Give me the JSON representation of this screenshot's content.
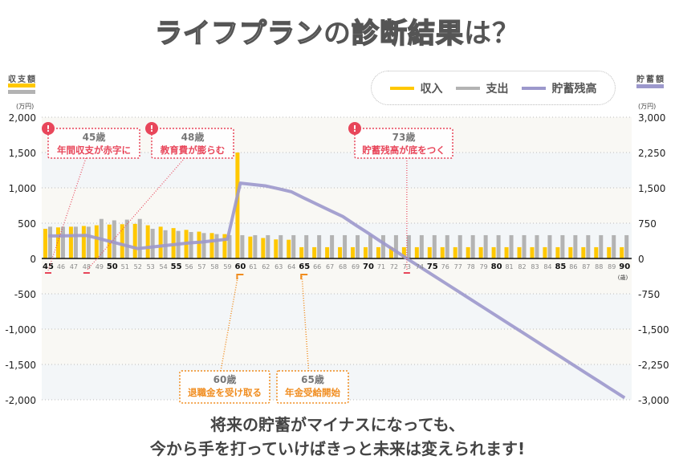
{
  "title": {
    "light": "ライフプラン",
    "dark": "の",
    "light2": "診断結果",
    "dark2": "は？"
  },
  "left_axis": {
    "title": "収支額",
    "unit": "(万円)"
  },
  "right_axis": {
    "title": "貯蓄額",
    "unit": "(万円)"
  },
  "legend": [
    {
      "label": "収入",
      "color": "#ffc800"
    },
    {
      "label": "支出",
      "color": "#b3b3b3"
    },
    {
      "label": "貯蓄残高",
      "color": "#9c98cc"
    }
  ],
  "age_unit": "(歳)",
  "annotations": [
    {
      "age_label": "45歳",
      "text": "年間収支が赤字に",
      "age": 45,
      "type": "warning"
    },
    {
      "age_label": "48歳",
      "text": "教育費が膨らむ",
      "age": 48,
      "type": "warning"
    },
    {
      "age_label": "73歳",
      "text": "貯蓄残高が底をつく",
      "age": 73,
      "type": "warning"
    },
    {
      "age_label": "60歳",
      "text": "退職金を受け取る",
      "age": 60,
      "type": "event"
    },
    {
      "age_label": "65歳",
      "text": "年金受給開始",
      "age": 65,
      "type": "event"
    }
  ],
  "warning_icon": "!",
  "bottom_text": [
    "将来の貯蓄がマイナスになっても、",
    "今から手を打っていけばきっと未来は変えられます!"
  ],
  "colors": {
    "income": "#ffc800",
    "expense": "#b3b3b3",
    "savings": "#9c98cc",
    "warning": "#e8465a",
    "event": "#f08c1e"
  },
  "chart_data": {
    "type": "bar+line",
    "x": [
      45,
      46,
      47,
      48,
      49,
      50,
      51,
      52,
      53,
      54,
      55,
      56,
      57,
      58,
      59,
      60,
      61,
      62,
      63,
      64,
      65,
      66,
      67,
      68,
      69,
      70,
      71,
      72,
      73,
      74,
      75,
      76,
      77,
      78,
      79,
      80,
      81,
      82,
      83,
      84,
      85,
      86,
      87,
      88,
      89,
      90
    ],
    "series": [
      {
        "name": "収入",
        "type": "bar",
        "axis": "left",
        "values": [
          420,
          440,
          450,
          460,
          470,
          480,
          485,
          490,
          470,
          450,
          430,
          405,
          380,
          360,
          345,
          1500,
          310,
          290,
          270,
          265,
          160,
          160,
          160,
          160,
          160,
          160,
          160,
          160,
          160,
          160,
          160,
          160,
          160,
          160,
          160,
          160,
          160,
          160,
          160,
          160,
          160,
          160,
          160,
          160,
          160,
          160
        ]
      },
      {
        "name": "支出",
        "type": "bar",
        "axis": "left",
        "values": [
          450,
          450,
          450,
          450,
          560,
          540,
          550,
          560,
          420,
          400,
          390,
          375,
          360,
          345,
          330,
          330,
          330,
          330,
          330,
          330,
          330,
          330,
          330,
          330,
          330,
          330,
          330,
          330,
          330,
          330,
          330,
          330,
          330,
          330,
          330,
          330,
          330,
          330,
          330,
          330,
          330,
          330,
          330,
          330,
          330,
          330
        ]
      },
      {
        "name": "貯蓄残高",
        "type": "line",
        "axis": "right",
        "values": [
          480,
          480,
          485,
          490,
          420,
          350,
          280,
          210,
          240,
          270,
          300,
          330,
          350,
          380,
          410,
          1600,
          1570,
          1540,
          1480,
          1415,
          1280,
          1150,
          1020,
          892,
          710,
          535,
          355,
          180,
          0,
          -174,
          -348,
          -522,
          -696,
          -870,
          -1044,
          -1218,
          -1392,
          -1566,
          -1740,
          -1914,
          -2088,
          -2262,
          -2436,
          -2610,
          -2784,
          -2958
        ]
      }
    ],
    "left_ylim": [
      -2000,
      2000
    ],
    "left_ticks": [
      "2,000",
      "1,500",
      "1,000",
      "500",
      "0",
      "-500",
      "-1,000",
      "-1,500",
      "-2,000"
    ],
    "right_ylim": [
      -3000,
      3000
    ],
    "right_ticks": [
      "3,000",
      "2,250",
      "1,500",
      "750",
      "0",
      "-750",
      "-1,500",
      "-2,250",
      "-3,000"
    ],
    "xlabel": "(歳)",
    "legend_position": "top-right",
    "grid": true
  }
}
